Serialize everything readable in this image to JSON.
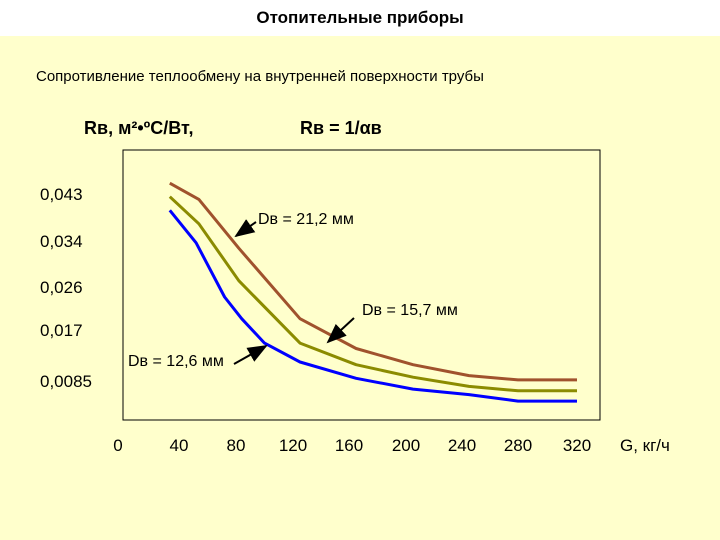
{
  "header": {
    "title": "Отопительные приборы"
  },
  "subtitle": "Сопротивление теплообмену на внутренней поверхности трубы",
  "chart_data": {
    "type": "line",
    "ylabel": "Rв, м²•ºС/Вт,",
    "formula": "Rв = 1/αв",
    "xlabel": "G, кг/ч",
    "x_ticks": [
      "0",
      "40",
      "80",
      "120",
      "160",
      "200",
      "240",
      "280",
      "320"
    ],
    "y_ticks": [
      "0,043",
      "0,034",
      "0,026",
      "0,017",
      "0,0085"
    ],
    "xlim": [
      0,
      320
    ],
    "series": [
      {
        "name": "Dв = 21,2 мм",
        "color": "#a0522d",
        "x": [
          34,
          54,
          82,
          125,
          165,
          205,
          245,
          280,
          320
        ],
        "y": [
          0.045,
          0.042,
          0.033,
          0.02,
          0.0145,
          0.0115,
          0.0095,
          0.0087,
          0.0087
        ]
      },
      {
        "name": "Dв = 15,7 мм",
        "color": "#8b8b00",
        "x": [
          34,
          54,
          82,
          125,
          165,
          205,
          245,
          280,
          320
        ],
        "y": [
          0.0425,
          0.0375,
          0.027,
          0.0155,
          0.0115,
          0.0092,
          0.0075,
          0.0067,
          0.0067
        ]
      },
      {
        "name": "Dв = 12,6 мм",
        "color": "#0000ff",
        "x": [
          34,
          52,
          72,
          84,
          100,
          125,
          165,
          205,
          245,
          280,
          320
        ],
        "y": [
          0.04,
          0.034,
          0.024,
          0.02,
          0.0155,
          0.012,
          0.009,
          0.007,
          0.006,
          0.0048,
          0.0048
        ]
      }
    ],
    "annotations": [
      {
        "text": "Dв = 21,2 мм"
      },
      {
        "text": "Dв = 15,7 мм"
      },
      {
        "text": "Dв = 12,6 мм"
      }
    ]
  }
}
